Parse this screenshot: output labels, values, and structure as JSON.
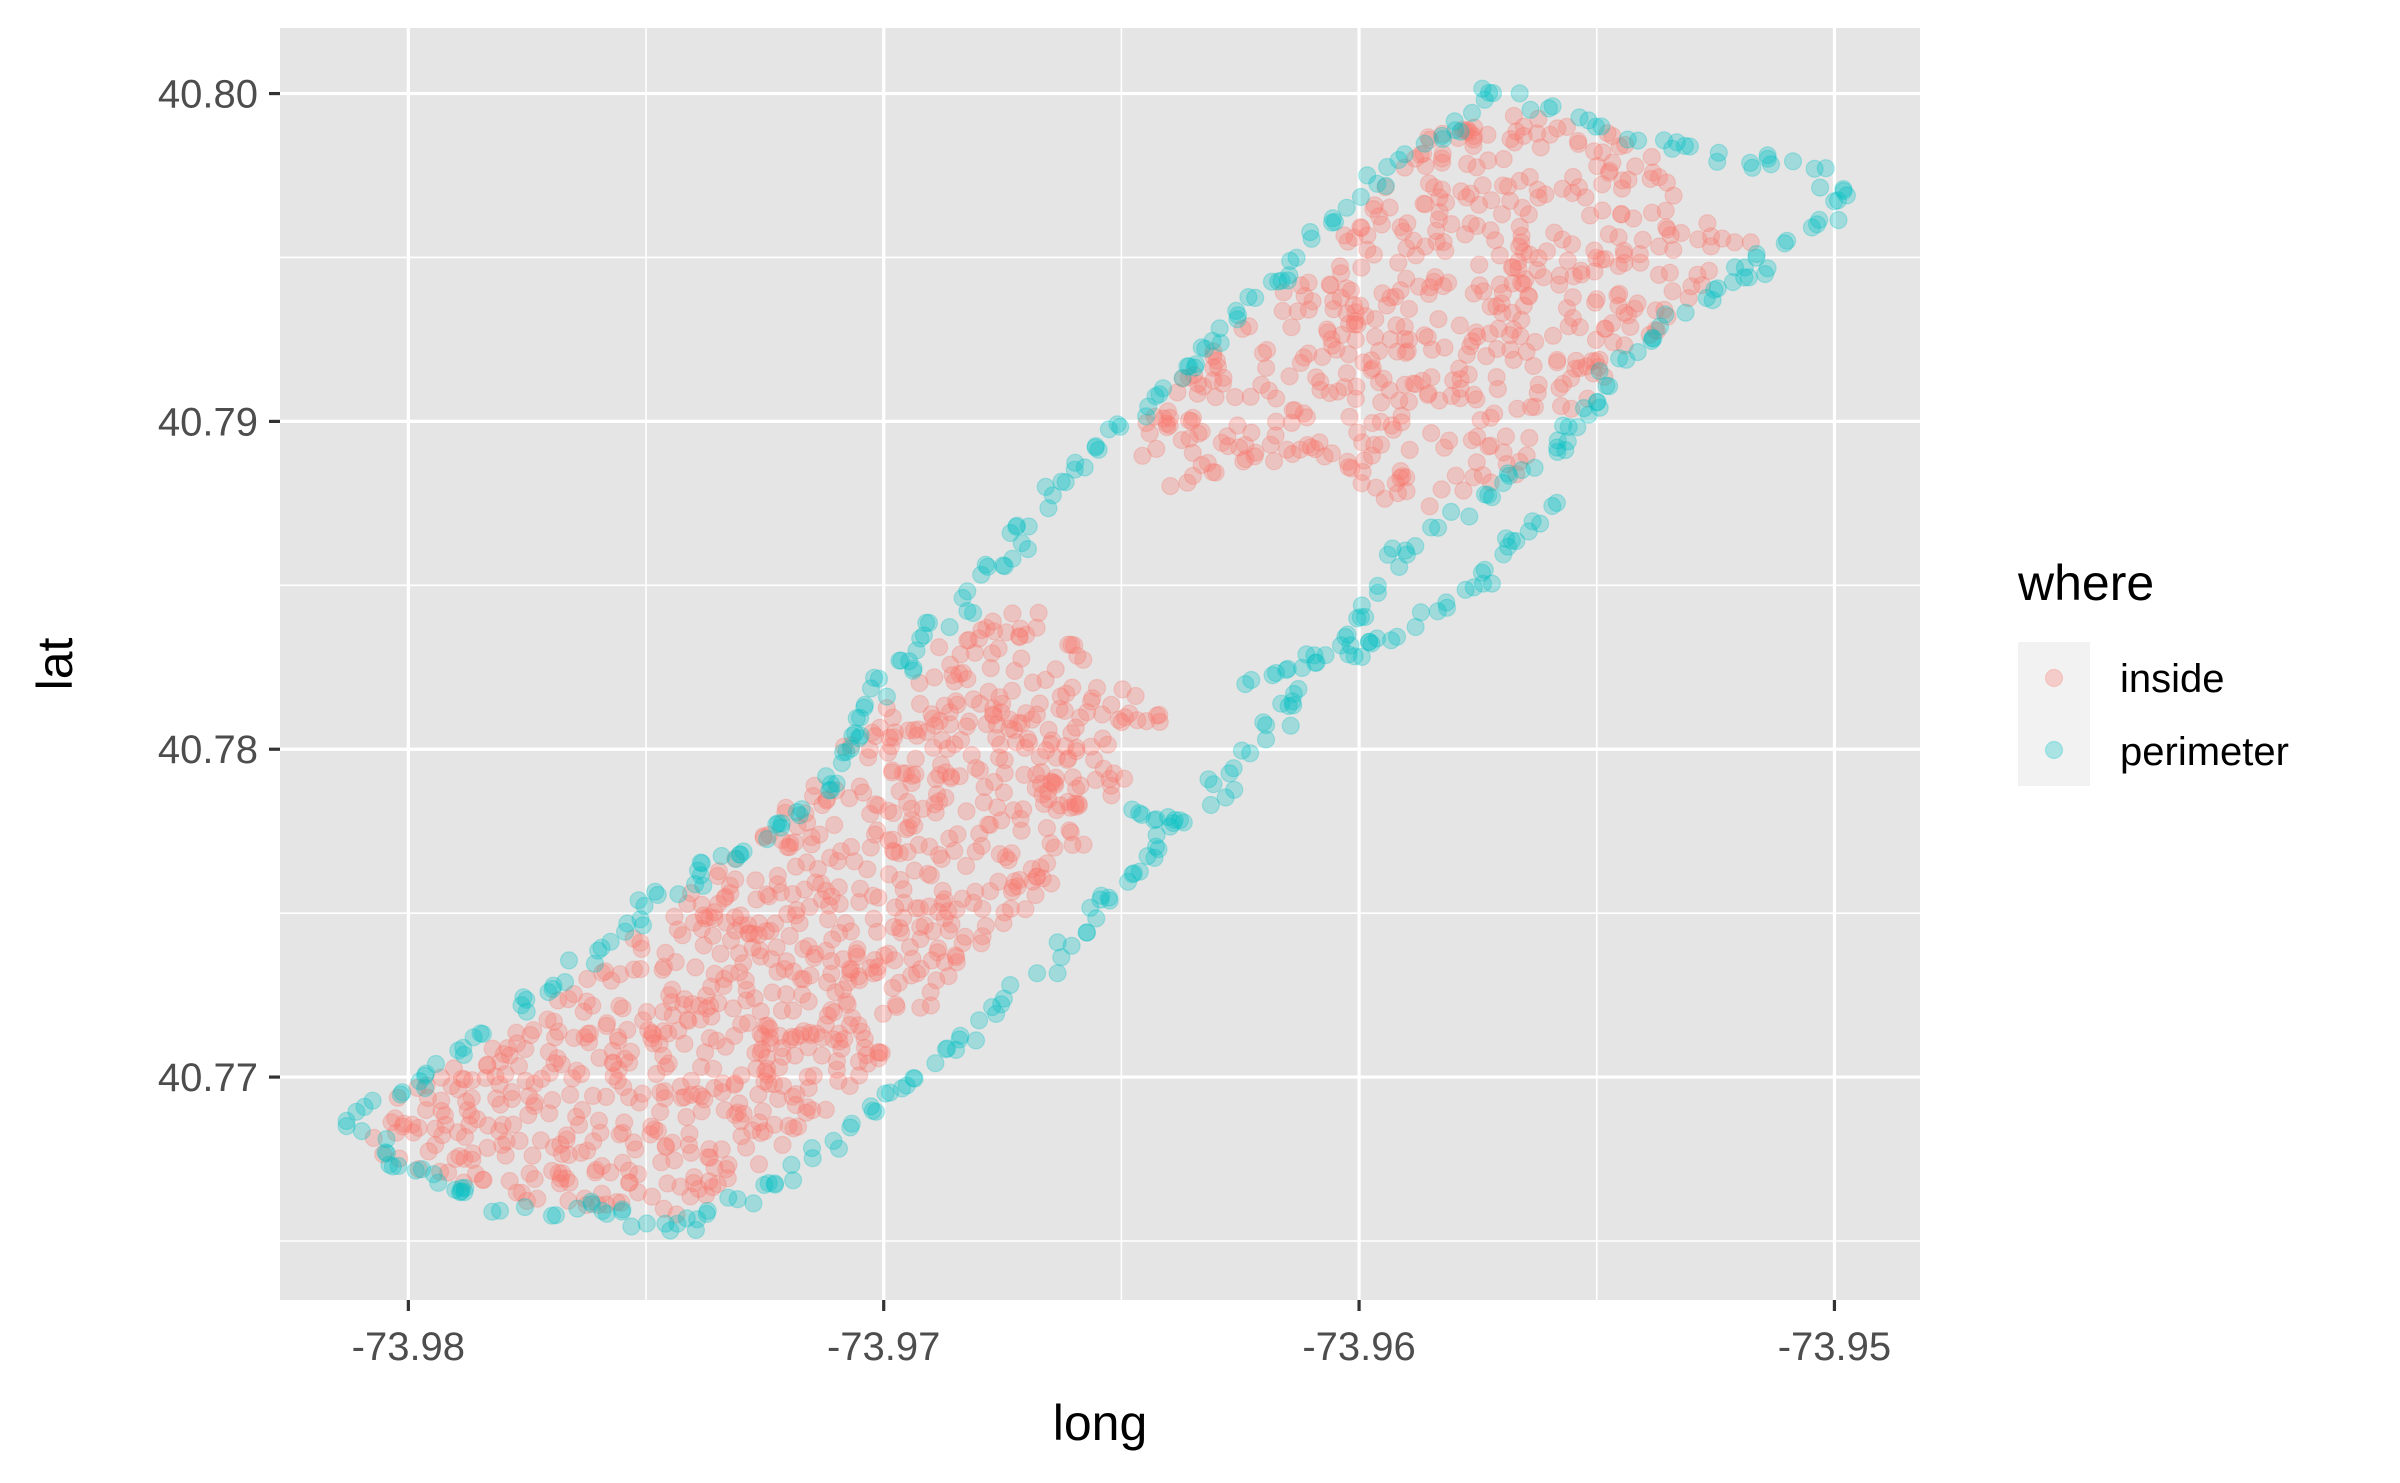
{
  "chart_data": {
    "type": "scatter",
    "xlabel": "long",
    "ylabel": "lat",
    "xlim": [
      -73.9827,
      -73.9482
    ],
    "ylim": [
      40.7632,
      40.802
    ],
    "x_ticks": [
      -73.98,
      -73.97,
      -73.96,
      -73.95
    ],
    "x_tick_labels": [
      "-73.98",
      "-73.97",
      "-73.96",
      "-73.95"
    ],
    "y_ticks": [
      40.77,
      40.78,
      40.79,
      40.8
    ],
    "y_tick_labels": [
      "40.77",
      "40.78",
      "40.79",
      "40.80"
    ],
    "grid": true,
    "point_alpha": 0.3,
    "legend": {
      "title": "where",
      "placement": "right",
      "entries": [
        {
          "name": "inside",
          "color": "#F8766D"
        },
        {
          "name": "perimeter",
          "color": "#00BFC4"
        }
      ]
    },
    "series": [
      {
        "name": "perimeter",
        "color": "#00BFC4",
        "outline": [
          [
            -73.9812,
            40.7687
          ],
          [
            -73.9795,
            40.7702
          ],
          [
            -73.9775,
            40.7722
          ],
          [
            -73.9755,
            40.7745
          ],
          [
            -73.9735,
            40.7765
          ],
          [
            -73.9715,
            40.7785
          ],
          [
            -73.97,
            40.782
          ],
          [
            -73.9685,
            40.7842
          ],
          [
            -73.9665,
            40.7878
          ],
          [
            -73.964,
            40.7912
          ],
          [
            -73.962,
            40.794
          ],
          [
            -73.96,
            40.7968
          ],
          [
            -73.958,
            40.7992
          ],
          [
            -73.957,
            40.8
          ],
          [
            -73.9555,
            40.7992
          ],
          [
            -73.953,
            40.7982
          ],
          [
            -73.9505,
            40.7978
          ],
          [
            -73.9495,
            40.7968
          ],
          [
            -73.951,
            40.7955
          ],
          [
            -73.953,
            40.7935
          ],
          [
            -73.9545,
            40.7918
          ],
          [
            -73.956,
            40.7888
          ],
          [
            -73.9585,
            40.7868
          ],
          [
            -73.96,
            40.784
          ],
          [
            -73.9612,
            40.7818
          ],
          [
            -73.9638,
            40.7775
          ],
          [
            -73.965,
            40.776
          ],
          [
            -73.9665,
            40.7735
          ],
          [
            -73.968,
            40.7715
          ],
          [
            -73.97,
            40.7693
          ],
          [
            -73.9715,
            40.7675
          ],
          [
            -73.9728,
            40.7665
          ],
          [
            -73.974,
            40.7652
          ],
          [
            -73.976,
            40.766
          ],
          [
            -73.978,
            40.766
          ],
          [
            -73.98,
            40.7672
          ],
          [
            -73.9812,
            40.7687
          ]
        ],
        "extra_arcs": [
          [
            [
              -73.9625,
              40.782
            ],
            [
              -73.9595,
              40.7832
            ],
            [
              -73.9575,
              40.7852
            ],
            [
              -73.956,
              40.7875
            ]
          ],
          [
            [
              -73.964,
              40.7775
            ],
            [
              -73.965,
              40.7785
            ]
          ]
        ]
      },
      {
        "name": "inside",
        "color": "#F8766D",
        "regions": [
          {
            "polygon": [
              [
                -73.981,
                40.7688
              ],
              [
                -73.979,
                40.7703
              ],
              [
                -73.977,
                40.7722
              ],
              [
                -73.9748,
                40.7748
              ],
              [
                -73.9728,
                40.7772
              ],
              [
                -73.9712,
                40.7795
              ],
              [
                -73.969,
                40.783
              ],
              [
                -73.967,
                40.7845
              ],
              [
                -73.965,
                40.782
              ],
              [
                -73.964,
                40.7812
              ],
              [
                -73.966,
                40.7765
              ],
              [
                -73.968,
                40.7735
              ],
              [
                -73.9705,
                40.77
              ],
              [
                -73.9725,
                40.7672
              ],
              [
                -73.9745,
                40.7657
              ],
              [
                -73.978,
                40.7663
              ],
              [
                -73.9805,
                40.7675
              ]
            ],
            "count": 900
          },
          {
            "polygon": [
              [
                -73.965,
                40.7895
              ],
              [
                -73.9625,
                40.793
              ],
              [
                -73.9605,
                40.7955
              ],
              [
                -73.9585,
                40.7988
              ],
              [
                -73.9565,
                40.7995
              ],
              [
                -73.954,
                40.7985
              ],
              [
                -73.953,
                40.7965
              ],
              [
                -73.9515,
                40.7955
              ],
              [
                -73.9545,
                40.7918
              ],
              [
                -73.9565,
                40.7885
              ],
              [
                -73.959,
                40.787
              ],
              [
                -73.961,
                40.789
              ],
              [
                -73.964,
                40.788
              ]
            ],
            "count": 520
          }
        ]
      }
    ]
  }
}
